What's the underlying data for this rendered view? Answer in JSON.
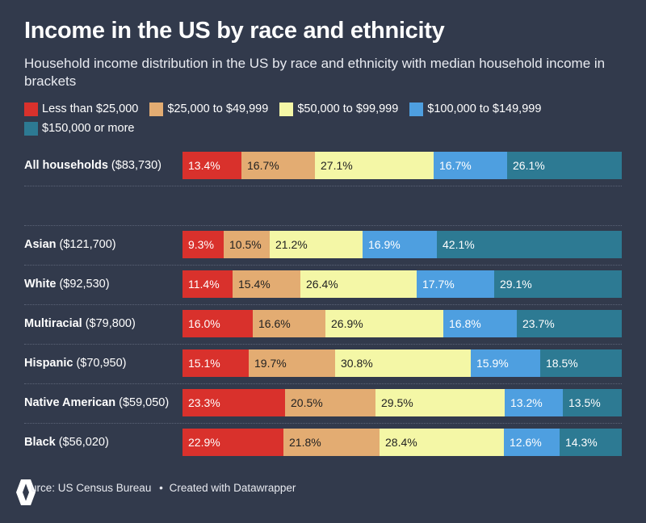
{
  "chart_data": {
    "type": "bar",
    "orientation": "horizontal",
    "stacked": true,
    "title": "Income in the US by race and ethnicity",
    "subtitle": "Household income distribution in the US by race and ethnicity with median household income in brackets",
    "xlim": [
      0,
      100
    ],
    "legend_position": "top",
    "brackets": [
      {
        "label": "Less than $25,000",
        "color": "#d9312c",
        "text_color": "#ffffff"
      },
      {
        "label": "$25,000 to $49,999",
        "color": "#e3ac72",
        "text_color": "#222222"
      },
      {
        "label": "$50,000 to $99,999",
        "color": "#f4f7a6",
        "text_color": "#222222"
      },
      {
        "label": "$100,000 to $149,999",
        "color": "#4e9fe0",
        "text_color": "#ffffff"
      },
      {
        "label": "$150,000 or more",
        "color": "#2d7a93",
        "text_color": "#ffffff"
      }
    ],
    "rows": [
      {
        "category": "All households",
        "median": "($83,730)",
        "values": [
          13.4,
          16.7,
          27.1,
          16.7,
          26.1
        ],
        "labels": [
          "13.4%",
          "16.7%",
          "27.1%",
          "16.7%",
          "26.1%"
        ]
      },
      {
        "category": "Asian",
        "median": "($121,700)",
        "values": [
          9.3,
          10.5,
          21.2,
          16.9,
          42.1
        ],
        "labels": [
          "9.3%",
          "10.5%",
          "21.2%",
          "16.9%",
          "42.1%"
        ]
      },
      {
        "category": "White",
        "median": "($92,530)",
        "values": [
          11.4,
          15.4,
          26.4,
          17.7,
          29.1
        ],
        "labels": [
          "11.4%",
          "15.4%",
          "26.4%",
          "17.7%",
          "29.1%"
        ]
      },
      {
        "category": "Multiracial",
        "median": "($79,800)",
        "values": [
          16.0,
          16.6,
          26.9,
          16.8,
          23.7
        ],
        "labels": [
          "16.0%",
          "16.6%",
          "26.9%",
          "16.8%",
          "23.7%"
        ]
      },
      {
        "category": "Hispanic",
        "median": "($70,950)",
        "values": [
          15.1,
          19.7,
          30.8,
          15.9,
          18.5
        ],
        "labels": [
          "15.1%",
          "19.7%",
          "30.8%",
          "15.9%",
          "18.5%"
        ]
      },
      {
        "category": "Native American",
        "median": "($59,050)",
        "values": [
          23.3,
          20.5,
          29.5,
          13.2,
          13.5
        ],
        "labels": [
          "23.3%",
          "20.5%",
          "29.5%",
          "13.2%",
          "13.5%"
        ]
      },
      {
        "category": "Black",
        "median": "($56,020)",
        "values": [
          22.9,
          21.8,
          28.4,
          12.6,
          14.3
        ],
        "labels": [
          "22.9%",
          "21.8%",
          "28.4%",
          "12.6%",
          "14.3%"
        ]
      }
    ]
  },
  "footer": {
    "source": "urce: US Census Bureau",
    "separator": "•",
    "credit": "Created with Datawrapper"
  },
  "icons": {
    "logo": "hive-logo-icon"
  }
}
